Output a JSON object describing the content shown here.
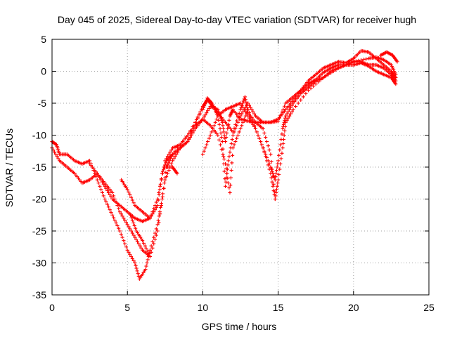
{
  "chart_data": {
    "type": "scatter",
    "title": "Day 045 of 2025, Sidereal Day-to-day VTEC variation (SDTVAR) for receiver hugh",
    "xlabel": "GPS time / hours",
    "ylabel": "SDTVAR / TECUs",
    "xlim": [
      0,
      25
    ],
    "ylim": [
      -35,
      5
    ],
    "xticks": [
      0,
      5,
      10,
      15,
      20,
      25
    ],
    "yticks": [
      5,
      0,
      -5,
      -10,
      -15,
      -20,
      -25,
      -30,
      -35
    ],
    "grid": true,
    "marker": "+",
    "color": "#ff0000",
    "series": [
      {
        "points": [
          [
            0,
            -11
          ],
          [
            0.3,
            -11.5
          ],
          [
            0.5,
            -13
          ],
          [
            1,
            -13
          ],
          [
            1.5,
            -14
          ],
          [
            2,
            -14.5
          ],
          [
            2.5,
            -14
          ],
          [
            3,
            -17
          ],
          [
            3.5,
            -20
          ],
          [
            4,
            -22.5
          ],
          [
            4.5,
            -25
          ],
          [
            5,
            -28
          ],
          [
            5.5,
            -30
          ],
          [
            5.8,
            -32.5
          ],
          [
            6.2,
            -31
          ],
          [
            6.5,
            -28
          ],
          [
            7,
            -24
          ],
          [
            7.3,
            -20
          ],
          [
            7.6,
            -15
          ],
          [
            8,
            -13
          ],
          [
            9,
            -10
          ],
          [
            10,
            -6
          ],
          [
            10.3,
            -4.2
          ],
          [
            10.6,
            -5
          ],
          [
            11,
            -6.5
          ],
          [
            11.5,
            -8
          ],
          [
            12,
            -9.5
          ],
          [
            12.5,
            -6
          ],
          [
            12.8,
            -4
          ],
          [
            13,
            -6.5
          ],
          [
            13.5,
            -8
          ],
          [
            14,
            -9
          ],
          [
            14.5,
            -13
          ],
          [
            14.8,
            -20
          ]
        ]
      },
      {
        "points": [
          [
            0,
            -12
          ],
          [
            0.5,
            -14
          ],
          [
            1,
            -15
          ],
          [
            1.5,
            -16
          ],
          [
            2,
            -17.5
          ],
          [
            2.5,
            -17
          ],
          [
            3,
            -16
          ],
          [
            3.5,
            -17.5
          ],
          [
            4,
            -19
          ],
          [
            4.5,
            -22
          ],
          [
            5,
            -24
          ],
          [
            5.5,
            -26
          ],
          [
            6,
            -28
          ],
          [
            6.5,
            -29
          ],
          [
            7,
            -25
          ],
          [
            7.5,
            -17
          ],
          [
            8,
            -14
          ],
          [
            8.5,
            -12
          ],
          [
            9,
            -11
          ],
          [
            9.5,
            -9
          ],
          [
            10,
            -7.5
          ],
          [
            10.5,
            -5.5
          ],
          [
            11,
            -6
          ],
          [
            11.3,
            -8
          ],
          [
            11.5,
            -11
          ],
          [
            11.8,
            -7
          ],
          [
            12,
            -6
          ],
          [
            12.5,
            -7.5
          ],
          [
            13,
            -7.8
          ],
          [
            13.5,
            -8
          ],
          [
            14,
            -8
          ],
          [
            14.5,
            -8
          ],
          [
            15,
            -7.5
          ],
          [
            15.5,
            -6
          ],
          [
            16,
            -4.5
          ],
          [
            16.5,
            -3
          ],
          [
            17,
            -2
          ],
          [
            17.5,
            -1.3
          ],
          [
            18,
            -0.2
          ],
          [
            18.5,
            0.5
          ],
          [
            19,
            1
          ],
          [
            19.5,
            1
          ],
          [
            20,
            1
          ],
          [
            20.5,
            1.3
          ],
          [
            21,
            0.8
          ],
          [
            21.5,
            0
          ],
          [
            22,
            -0.5
          ],
          [
            22.5,
            -1
          ],
          [
            22.8,
            -2
          ]
        ]
      },
      {
        "points": [
          [
            2.5,
            -14.5
          ],
          [
            3,
            -16
          ],
          [
            3.5,
            -18
          ],
          [
            4,
            -20
          ],
          [
            4.5,
            -21
          ],
          [
            5,
            -22
          ],
          [
            5.5,
            -23
          ],
          [
            6,
            -23.5
          ],
          [
            6.5,
            -23
          ],
          [
            7,
            -21
          ],
          [
            7.3,
            -16
          ],
          [
            7.6,
            -14
          ],
          [
            8,
            -13
          ],
          [
            8.5,
            -12
          ],
          [
            9,
            -11
          ],
          [
            9.5,
            -8
          ],
          [
            10,
            -5.5
          ],
          [
            10.3,
            -4.5
          ],
          [
            10.7,
            -5.5
          ],
          [
            11,
            -7
          ],
          [
            11.3,
            -11
          ],
          [
            11.5,
            -18
          ],
          [
            11.7,
            -14
          ],
          [
            12,
            -10
          ],
          [
            12.5,
            -7
          ],
          [
            13,
            -5
          ],
          [
            13.5,
            -7
          ],
          [
            14,
            -8
          ],
          [
            14.5,
            -8
          ],
          [
            15,
            -7.8
          ],
          [
            15.5,
            -5
          ],
          [
            16,
            -4
          ],
          [
            16.5,
            -3
          ],
          [
            17,
            -1.5
          ],
          [
            17.5,
            -0.5
          ],
          [
            18,
            0.5
          ],
          [
            18.5,
            1
          ],
          [
            19,
            1.5
          ],
          [
            19.5,
            1.3
          ],
          [
            20,
            2
          ],
          [
            20.5,
            3.2
          ],
          [
            21,
            3
          ],
          [
            21.5,
            2
          ],
          [
            22,
            1
          ],
          [
            22.5,
            0
          ],
          [
            22.8,
            -1
          ]
        ]
      },
      {
        "points": [
          [
            4.6,
            -17
          ],
          [
            5,
            -18.5
          ],
          [
            5.5,
            -21
          ],
          [
            6,
            -22
          ],
          [
            6.5,
            -23
          ],
          [
            7,
            -20
          ],
          [
            7.5,
            -14
          ],
          [
            8,
            -12
          ],
          [
            8.5,
            -11.5
          ],
          [
            9,
            -10
          ],
          [
            9.5,
            -8.5
          ],
          [
            10,
            -7.5
          ],
          [
            10.5,
            -8.5
          ],
          [
            11,
            -10
          ],
          [
            11.5,
            -14.5
          ],
          [
            11.8,
            -19
          ],
          [
            12,
            -12
          ],
          [
            12.5,
            -9
          ],
          [
            13,
            -6
          ],
          [
            13.5,
            -9
          ],
          [
            14,
            -12
          ],
          [
            14.5,
            -15
          ],
          [
            14.8,
            -17
          ],
          [
            15,
            -14
          ],
          [
            15.3,
            -9
          ],
          [
            15.5,
            -7
          ],
          [
            16,
            -5
          ],
          [
            16.5,
            -3.5
          ],
          [
            17,
            -2.5
          ],
          [
            17.5,
            -1.5
          ],
          [
            18,
            -1
          ],
          [
            18.5,
            0
          ],
          [
            19,
            0.5
          ],
          [
            19.5,
            1
          ],
          [
            20,
            1.5
          ],
          [
            20.5,
            1.5
          ],
          [
            21,
            1
          ],
          [
            21.5,
            1
          ],
          [
            22,
            0.5
          ],
          [
            22.5,
            -0.5
          ],
          [
            22.8,
            -1.5
          ]
        ]
      },
      {
        "points": [
          [
            10,
            -13
          ],
          [
            10.5,
            -10
          ],
          [
            11,
            -7
          ],
          [
            11.5,
            -6
          ],
          [
            12,
            -5.5
          ],
          [
            12.5,
            -5
          ],
          [
            13,
            -7
          ],
          [
            13.5,
            -9
          ],
          [
            14,
            -12
          ],
          [
            14.5,
            -16
          ],
          [
            14.8,
            -20
          ],
          [
            15,
            -17
          ],
          [
            15.3,
            -12
          ],
          [
            15.5,
            -8
          ],
          [
            16,
            -6
          ],
          [
            17,
            -3
          ],
          [
            18,
            -1
          ],
          [
            19,
            0.5
          ],
          [
            20,
            1.5
          ],
          [
            21,
            2
          ],
          [
            21.5,
            2.2
          ],
          [
            22,
            1.8
          ],
          [
            22.5,
            1
          ],
          [
            22.8,
            -0.5
          ]
        ]
      },
      {
        "points": [
          [
            7.5,
            -15
          ],
          [
            8,
            -15
          ],
          [
            8.3,
            -16
          ]
        ]
      },
      {
        "points": [
          [
            5.2,
            -22.5
          ],
          [
            5.6,
            -25
          ],
          [
            6,
            -26.5
          ],
          [
            6.5,
            -29
          ]
        ]
      },
      {
        "points": [
          [
            21.8,
            2.5
          ],
          [
            22.2,
            3
          ],
          [
            22.6,
            2.5
          ],
          [
            22.9,
            1.5
          ]
        ]
      }
    ]
  }
}
